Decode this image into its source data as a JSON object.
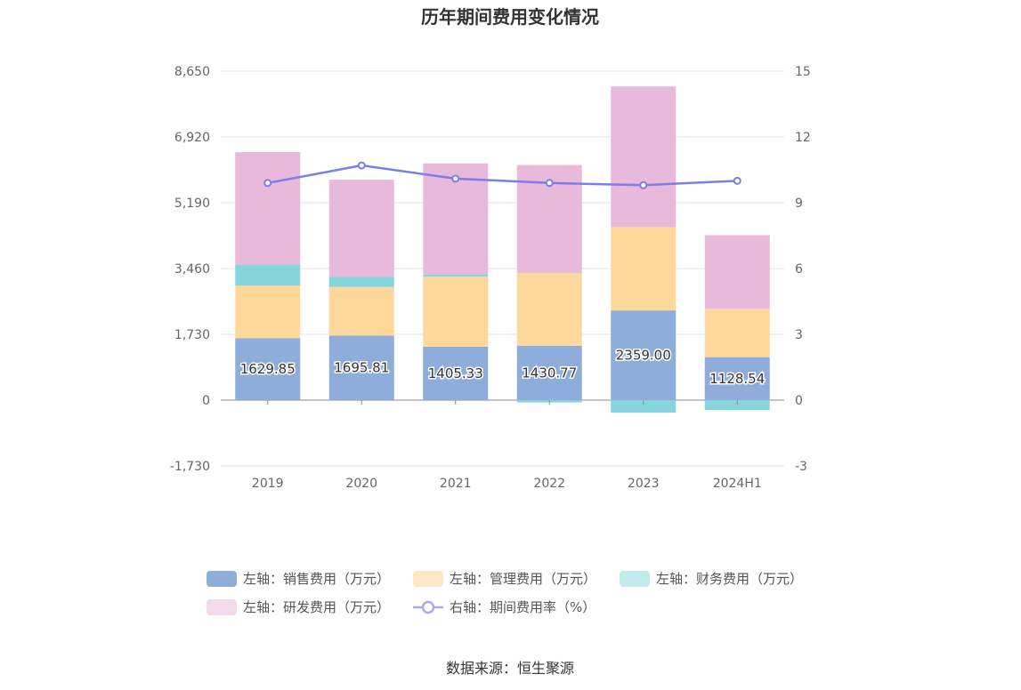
{
  "chart_data": {
    "type": "bar",
    "title": "历年期间费用变化情况",
    "categories": [
      "2019",
      "2020",
      "2021",
      "2022",
      "2023",
      "2024H1"
    ],
    "left_axis": {
      "ticks": [
        "8,650",
        "6,920",
        "5,190",
        "3,460",
        "1,730",
        "0",
        "-1,730"
      ],
      "min": -1730,
      "max": 8650
    },
    "right_axis": {
      "ticks": [
        "15",
        "12",
        "9",
        "6",
        "3",
        "0",
        "-3"
      ],
      "min": -3,
      "max": 15
    },
    "series": [
      {
        "name": "左轴：销售费用（万元）",
        "color": "#8eaddb",
        "values": [
          1629.85,
          1695.81,
          1405.33,
          1430.77,
          2359.0,
          1128.54
        ],
        "labels": [
          "1629.85",
          "1695.81",
          "1405.33",
          "1430.77",
          "2359.00",
          "1128.54"
        ]
      },
      {
        "name": "左轴：管理费用（万元）",
        "color": "#fdd89a",
        "values": [
          1380,
          1280,
          1840,
          1910,
          2190,
          1270
        ]
      },
      {
        "name": "左轴：财务费用（万元）",
        "color": "#86d5da",
        "values": [
          560,
          270,
          60,
          -60,
          -330,
          -260
        ]
      },
      {
        "name": "左轴：研发费用（万元）",
        "color": "#e8b9da",
        "values": [
          2950,
          2550,
          2920,
          2840,
          3700,
          1940
        ]
      }
    ],
    "line": {
      "name": "右轴：期间费用率（%）",
      "color": "#7b7de8",
      "values": [
        9.9,
        10.7,
        10.1,
        9.9,
        9.8,
        10.0
      ]
    },
    "legend_position": "bottom",
    "grid": true
  },
  "legend_swatch_colors": [
    "#8eaddb",
    "#fde7c4",
    "#c2e9ec",
    "#f3d9eb"
  ],
  "source": "数据来源：恒生聚源"
}
